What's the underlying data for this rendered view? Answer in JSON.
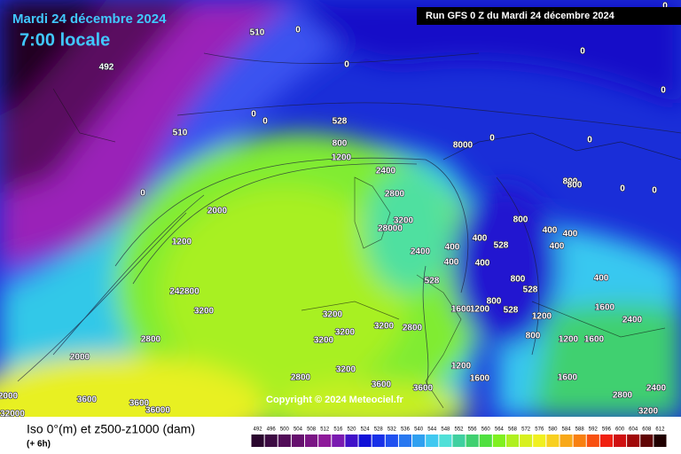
{
  "header": {
    "date": "Mardi 24 décembre 2024",
    "time": "7:00 locale",
    "run": "Run GFS 0 Z du Mardi 24 décembre 2024"
  },
  "copyright": "Copyright © 2024 Meteociel.fr",
  "footer": {
    "title": "Iso 0°(m) et z500-z1000 (dam)",
    "step": "(+ 6h)"
  },
  "colorbar": {
    "labels": [
      492,
      496,
      500,
      504,
      508,
      512,
      516,
      520,
      524,
      528,
      532,
      536,
      540,
      544,
      548,
      552,
      556,
      560,
      564,
      568,
      572,
      576,
      580,
      584,
      588,
      592,
      596,
      600,
      604,
      608,
      612
    ],
    "colors": [
      "#2a062e",
      "#3c0a42",
      "#520c58",
      "#66106e",
      "#7a1484",
      "#8e1a9a",
      "#7a1ab0",
      "#4010c8",
      "#1010d8",
      "#1830e8",
      "#2050f0",
      "#2878f0",
      "#30a0f0",
      "#40c8f0",
      "#50e0d8",
      "#40d0a0",
      "#40d070",
      "#50e040",
      "#80f020",
      "#b0f020",
      "#d8f020",
      "#f0f020",
      "#f8d020",
      "#f8a818",
      "#f88010",
      "#f85010",
      "#f02010",
      "#d01010",
      "#a00808",
      "#600404",
      "#200000"
    ]
  },
  "contour_labels": [
    "510",
    "0",
    "492",
    "0",
    "0",
    "0",
    "0",
    "510",
    "0",
    "0",
    "528",
    "800",
    "1200",
    "8000",
    "0",
    "0",
    "0",
    "2400",
    "800",
    "800",
    "0",
    "0",
    "2000",
    "2800",
    "3200",
    "28000",
    "800",
    "528",
    "400",
    "400",
    "400",
    "1200",
    "2400",
    "400",
    "400",
    "400",
    "400",
    "242800",
    "3200",
    "528",
    "800",
    "528",
    "400",
    "3200",
    "1600",
    "1200",
    "800",
    "528",
    "1200",
    "1600",
    "2400",
    "2800",
    "3200",
    "3200",
    "3200",
    "2800",
    "800",
    "1200",
    "1600",
    "2000",
    "1200",
    "1600",
    "1600",
    "2800",
    "3600",
    "3600",
    "2800",
    "2400",
    "3200",
    "2000",
    "3600",
    "3600",
    "36000",
    "32000",
    "3200"
  ]
}
